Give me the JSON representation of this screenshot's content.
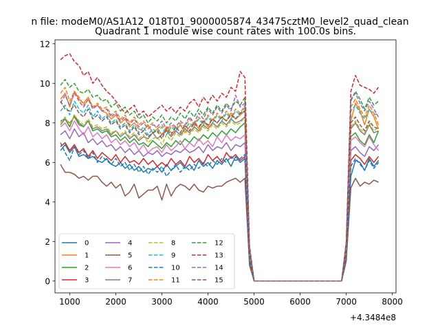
{
  "figure": {
    "suptitle": "n file: modeM0/AS1A12_018T01_9000005874_43475cztM0_level2_quad_clean",
    "background": "#ffffff"
  },
  "chart_data": {
    "type": "line",
    "title": "Quadrant 1 module wise count rates with 100.0s bins.",
    "xlabel": "",
    "ylabel": "",
    "x_offset_label": "+4.3484e8",
    "xlim": [
      680,
      8080
    ],
    "ylim": [
      -0.6,
      12.2
    ],
    "xticks": [
      1000,
      2000,
      3000,
      4000,
      5000,
      6000,
      7000,
      8000
    ],
    "yticks": [
      0,
      2,
      4,
      6,
      8,
      10,
      12
    ],
    "grid": false,
    "legend_position": "lower-left",
    "legend_columns": 4,
    "x": [
      800,
      900,
      1000,
      1100,
      1200,
      1300,
      1400,
      1500,
      1600,
      1700,
      1800,
      1900,
      2000,
      2100,
      2200,
      2300,
      2400,
      2500,
      2600,
      2700,
      2800,
      2900,
      3000,
      3100,
      3200,
      3300,
      3400,
      3500,
      3600,
      3700,
      3800,
      3900,
      4000,
      4100,
      4200,
      4300,
      4400,
      4500,
      4600,
      4700,
      4800,
      4900,
      5000,
      5100,
      5200,
      5300,
      5400,
      5500,
      5600,
      5700,
      5800,
      5900,
      6000,
      6100,
      6200,
      6300,
      6400,
      6500,
      6600,
      6700,
      6800,
      6900,
      7000,
      7100,
      7200,
      7300,
      7400,
      7500,
      7600,
      7700
    ],
    "series": [
      {
        "name": "0",
        "color": "#1f77b4",
        "dash": "solid",
        "values": [
          6.6,
          6.9,
          6.5,
          6.8,
          6.3,
          6.4,
          6.2,
          6.3,
          6.1,
          6.0,
          6.2,
          5.9,
          5.8,
          6.0,
          5.7,
          5.9,
          5.6,
          5.8,
          5.5,
          5.7,
          5.6,
          5.8,
          5.5,
          5.9,
          5.6,
          5.8,
          6.0,
          5.7,
          5.9,
          5.6,
          6.1,
          5.8,
          6.0,
          5.7,
          6.1,
          5.9,
          6.2,
          5.8,
          6.3,
          6.0,
          6.2,
          1.0,
          0.0,
          0,
          0,
          0,
          0,
          0,
          0,
          0,
          0,
          0,
          0,
          0,
          0,
          0,
          0,
          0,
          0,
          0,
          0,
          0,
          1.3,
          5.3,
          6.1,
          6.0,
          5.6,
          6.2,
          5.8,
          6.1
        ]
      },
      {
        "name": "1",
        "color": "#ff7f0e",
        "dash": "solid",
        "values": [
          9.2,
          9.5,
          8.8,
          9.6,
          9.2,
          9.0,
          9.3,
          8.8,
          8.9,
          8.6,
          8.5,
          8.2,
          8.4,
          8.0,
          8.2,
          7.8,
          8.0,
          7.7,
          7.6,
          7.9,
          7.5,
          7.7,
          7.4,
          7.8,
          7.5,
          7.6,
          7.9,
          7.5,
          7.8,
          8.0,
          7.7,
          8.1,
          7.8,
          8.2,
          8.0,
          8.3,
          8.1,
          8.5,
          8.2,
          8.4,
          8.6,
          1.4,
          0.0,
          0,
          0,
          0,
          0,
          0,
          0,
          0,
          0,
          0,
          0,
          0,
          0,
          0,
          0,
          0,
          0,
          0,
          0,
          0,
          1.6,
          8.1,
          9.0,
          8.6,
          7.9,
          8.7,
          8.3,
          7.7
        ]
      },
      {
        "name": "2",
        "color": "#2ca02c",
        "dash": "solid",
        "values": [
          8.1,
          8.2,
          7.8,
          8.4,
          8.0,
          7.8,
          8.1,
          7.6,
          7.7,
          7.5,
          7.6,
          7.3,
          7.4,
          7.1,
          7.3,
          7.0,
          7.2,
          6.9,
          7.0,
          6.8,
          7.1,
          6.9,
          6.7,
          7.0,
          6.8,
          7.1,
          6.9,
          7.2,
          7.0,
          7.3,
          7.1,
          7.4,
          7.2,
          7.5,
          7.3,
          7.6,
          7.4,
          7.7,
          7.5,
          7.8,
          8.0,
          1.3,
          0.0,
          0,
          0,
          0,
          0,
          0,
          0,
          0,
          0,
          0,
          0,
          0,
          0,
          0,
          0,
          0,
          0,
          0,
          0,
          0,
          1.5,
          7.3,
          7.5,
          7.1,
          6.9,
          7.4,
          7.0,
          7.6
        ]
      },
      {
        "name": "3",
        "color": "#d62728",
        "dash": "solid",
        "values": [
          6.8,
          7.0,
          6.6,
          6.9,
          6.5,
          6.7,
          6.3,
          6.6,
          6.2,
          6.5,
          6.3,
          6.1,
          6.4,
          6.0,
          6.3,
          6.0,
          6.1,
          5.9,
          6.2,
          5.9,
          6.1,
          5.8,
          6.0,
          5.8,
          6.2,
          5.9,
          6.1,
          5.8,
          6.3,
          6.0,
          6.2,
          5.9,
          6.4,
          6.1,
          6.3,
          6.0,
          6.5,
          6.2,
          6.4,
          6.1,
          6.3,
          1.1,
          0.0,
          0,
          0,
          0,
          0,
          0,
          0,
          0,
          0,
          0,
          0,
          0,
          0,
          0,
          0,
          0,
          0,
          0,
          0,
          0,
          1.3,
          6.1,
          6.4,
          6.2,
          5.9,
          6.3,
          6.0,
          6.3
        ]
      },
      {
        "name": "4",
        "color": "#9467bd",
        "dash": "solid",
        "values": [
          7.4,
          7.6,
          7.2,
          7.7,
          7.3,
          7.5,
          7.0,
          7.2,
          6.9,
          7.1,
          6.8,
          6.9,
          6.6,
          6.8,
          6.5,
          6.7,
          6.4,
          6.6,
          6.3,
          6.5,
          6.4,
          6.6,
          6.3,
          6.5,
          6.4,
          6.6,
          6.5,
          6.7,
          6.5,
          6.6,
          6.8,
          6.5,
          6.9,
          6.6,
          6.8,
          6.7,
          7.0,
          6.6,
          6.9,
          6.8,
          7.0,
          1.2,
          0.0,
          0,
          0,
          0,
          0,
          0,
          0,
          0,
          0,
          0,
          0,
          0,
          0,
          0,
          0,
          0,
          0,
          0,
          0,
          0,
          1.4,
          6.6,
          6.8,
          6.5,
          6.3,
          6.8,
          6.6,
          6.9
        ]
      },
      {
        "name": "5",
        "color": "#8c564b",
        "dash": "solid",
        "values": [
          5.9,
          5.5,
          5.5,
          5.4,
          5.2,
          5.3,
          5.1,
          5.3,
          5.3,
          5.0,
          4.8,
          5.0,
          4.7,
          4.9,
          4.3,
          4.5,
          4.9,
          4.2,
          4.4,
          4.6,
          4.6,
          4.8,
          4.1,
          4.9,
          4.3,
          4.7,
          4.9,
          4.8,
          4.6,
          4.9,
          4.6,
          4.5,
          4.8,
          4.7,
          4.8,
          4.8,
          5.0,
          5.1,
          5.2,
          5.0,
          5.2,
          0.8,
          0.0,
          0,
          0,
          0,
          0,
          0,
          0,
          0,
          0,
          0,
          0,
          0,
          0,
          0,
          0,
          0,
          0,
          0,
          0,
          0,
          1.0,
          4.7,
          5.2,
          4.8,
          5.0,
          4.9,
          5.1,
          5.0
        ]
      },
      {
        "name": "6",
        "color": "#e377c2",
        "dash": "solid",
        "values": [
          7.8,
          8.0,
          7.6,
          8.1,
          7.7,
          7.4,
          7.8,
          7.3,
          7.5,
          7.2,
          7.4,
          7.0,
          7.2,
          6.9,
          7.1,
          6.8,
          7.0,
          6.6,
          6.9,
          6.5,
          6.7,
          6.8,
          6.5,
          6.9,
          6.6,
          6.8,
          7.1,
          6.7,
          7.0,
          6.8,
          7.2,
          6.9,
          7.1,
          6.8,
          7.3,
          7.0,
          7.4,
          7.1,
          7.3,
          7.2,
          7.4,
          1.3,
          0.0,
          0,
          0,
          0,
          0,
          0,
          0,
          0,
          0,
          0,
          0,
          0,
          0,
          0,
          0,
          0,
          0,
          0,
          0,
          0,
          1.5,
          7.1,
          7.3,
          7.0,
          6.8,
          7.3,
          6.9,
          6.6
        ]
      },
      {
        "name": "7",
        "color": "#7f7f7f",
        "dash": "solid",
        "values": [
          7.9,
          8.2,
          8.0,
          8.3,
          7.9,
          7.8,
          8.1,
          7.7,
          7.8,
          7.6,
          7.7,
          7.4,
          7.6,
          7.3,
          7.5,
          7.2,
          7.4,
          7.1,
          7.3,
          7.2,
          7.5,
          7.2,
          7.4,
          7.6,
          7.3,
          7.6,
          7.4,
          7.7,
          7.5,
          7.8,
          7.6,
          7.9,
          7.7,
          8.0,
          7.8,
          8.1,
          7.9,
          8.2,
          8.0,
          8.1,
          8.3,
          1.4,
          0.0,
          0,
          0,
          0,
          0,
          0,
          0,
          0,
          0,
          0,
          0,
          0,
          0,
          0,
          0,
          0,
          0,
          0,
          0,
          0,
          1.6,
          7.7,
          8.0,
          7.6,
          7.4,
          7.9,
          7.5,
          7.6
        ]
      },
      {
        "name": "8",
        "color": "#bcbd22",
        "dash": "dash",
        "values": [
          8.0,
          8.3,
          7.9,
          8.4,
          8.1,
          7.9,
          8.2,
          7.8,
          7.9,
          7.7,
          7.8,
          7.5,
          7.6,
          7.4,
          7.6,
          7.3,
          7.5,
          7.2,
          7.4,
          7.0,
          7.2,
          7.3,
          6.9,
          7.4,
          7.1,
          7.5,
          7.3,
          7.6,
          7.4,
          7.7,
          7.5,
          7.8,
          7.6,
          7.9,
          7.7,
          8.0,
          7.8,
          8.1,
          7.9,
          8.0,
          8.3,
          1.4,
          0.0,
          0,
          0,
          0,
          0,
          0,
          0,
          0,
          0,
          0,
          0,
          0,
          0,
          0,
          0,
          0,
          0,
          0,
          0,
          0,
          1.6,
          7.8,
          8.1,
          7.7,
          7.5,
          8.0,
          7.6,
          7.8
        ]
      },
      {
        "name": "9",
        "color": "#17becf",
        "dash": "dash",
        "values": [
          8.6,
          8.9,
          8.4,
          9.1,
          8.7,
          8.5,
          8.9,
          8.3,
          8.6,
          8.2,
          8.4,
          8.0,
          8.2,
          7.8,
          8.0,
          7.6,
          7.9,
          7.5,
          7.8,
          7.4,
          7.7,
          7.5,
          7.8,
          7.4,
          7.8,
          7.6,
          7.9,
          7.7,
          8.0,
          7.8,
          8.2,
          7.9,
          8.3,
          8.0,
          8.4,
          8.1,
          8.5,
          8.2,
          8.6,
          8.4,
          8.8,
          1.5,
          0.0,
          0,
          0,
          0,
          0,
          0,
          0,
          0,
          0,
          0,
          0,
          0,
          0,
          0,
          0,
          0,
          0,
          0,
          0,
          0,
          1.7,
          8.6,
          8.9,
          8.5,
          8.2,
          8.7,
          8.4,
          8.5
        ]
      },
      {
        "name": "10",
        "color": "#1f77b4",
        "dash": "dash",
        "values": [
          7.0,
          6.5,
          6.1,
          6.8,
          6.4,
          6.6,
          6.2,
          6.5,
          6.0,
          6.3,
          6.1,
          5.9,
          6.2,
          5.8,
          6.0,
          5.6,
          5.9,
          5.5,
          5.8,
          5.4,
          5.7,
          5.5,
          5.8,
          5.3,
          5.6,
          5.9,
          5.5,
          5.8,
          5.6,
          5.9,
          5.7,
          6.0,
          5.8,
          6.1,
          5.9,
          6.2,
          6.0,
          6.3,
          6.1,
          6.2,
          6.4,
          1.1,
          0.0,
          0,
          0,
          0,
          0,
          0,
          0,
          0,
          0,
          0,
          0,
          0,
          0,
          0,
          0,
          0,
          0,
          0,
          0,
          0,
          1.3,
          5.8,
          6.2,
          5.9,
          5.6,
          6.1,
          5.7,
          6.0
        ]
      },
      {
        "name": "11",
        "color": "#ff7f0e",
        "dash": "dash",
        "values": [
          9.5,
          9.8,
          9.1,
          9.6,
          9.3,
          8.9,
          9.2,
          8.8,
          9.0,
          8.7,
          8.8,
          8.4,
          8.6,
          8.2,
          8.4,
          8.0,
          8.3,
          7.9,
          8.1,
          7.8,
          8.0,
          7.7,
          7.9,
          7.6,
          7.9,
          7.7,
          8.0,
          7.8,
          8.2,
          7.9,
          8.3,
          8.0,
          8.4,
          8.1,
          8.5,
          8.2,
          8.6,
          8.3,
          8.7,
          8.5,
          8.9,
          1.6,
          0.0,
          0,
          0,
          0,
          0,
          0,
          0,
          0,
          0,
          0,
          0,
          0,
          0,
          0,
          0,
          0,
          0,
          0,
          0,
          0,
          1.8,
          8.8,
          9.2,
          8.7,
          8.3,
          8.9,
          8.5,
          7.9
        ]
      },
      {
        "name": "12",
        "color": "#2ca02c",
        "dash": "dash",
        "values": [
          9.9,
          10.2,
          9.8,
          10.0,
          9.6,
          9.5,
          9.7,
          9.3,
          9.4,
          9.1,
          9.2,
          8.8,
          9.0,
          8.6,
          8.8,
          8.4,
          8.6,
          8.2,
          8.4,
          8.0,
          8.3,
          8.1,
          8.4,
          8.0,
          8.3,
          8.1,
          8.5,
          8.2,
          8.6,
          8.3,
          8.7,
          8.4,
          8.8,
          8.5,
          8.9,
          8.6,
          9.0,
          8.7,
          9.1,
          8.9,
          9.3,
          1.7,
          0.0,
          0,
          0,
          0,
          0,
          0,
          0,
          0,
          0,
          0,
          0,
          0,
          0,
          0,
          0,
          0,
          0,
          0,
          0,
          0,
          1.9,
          9.1,
          9.6,
          9.2,
          8.7,
          9.3,
          8.9,
          9.1
        ]
      },
      {
        "name": "13",
        "color": "#d62728",
        "dash": "dash",
        "values": [
          11.2,
          11.4,
          11.5,
          11.1,
          10.9,
          10.4,
          10.6,
          10.0,
          10.3,
          9.9,
          9.6,
          9.4,
          9.1,
          8.8,
          8.5,
          8.7,
          8.9,
          8.4,
          8.6,
          8.3,
          8.5,
          8.7,
          8.9,
          8.6,
          8.8,
          8.5,
          8.8,
          8.6,
          9.0,
          9.2,
          8.8,
          9.3,
          9.0,
          9.4,
          9.1,
          9.5,
          9.3,
          9.8,
          9.6,
          10.6,
          10.3,
          1.8,
          0.0,
          0,
          0,
          0,
          0,
          0,
          0,
          0,
          0,
          0,
          0,
          0,
          0,
          0,
          0,
          0,
          0,
          0,
          0,
          0,
          2.0,
          9.6,
          10.4,
          9.9,
          9.8,
          9.7,
          9.5,
          9.8
        ]
      },
      {
        "name": "14",
        "color": "#9467bd",
        "dash": "dash",
        "values": [
          9.0,
          9.4,
          8.9,
          9.5,
          9.1,
          8.8,
          9.2,
          8.7,
          8.9,
          8.6,
          8.7,
          8.3,
          8.5,
          8.1,
          8.3,
          7.9,
          8.2,
          7.8,
          8.0,
          7.7,
          7.9,
          7.8,
          8.1,
          7.7,
          8.0,
          7.8,
          8.1,
          7.9,
          8.3,
          8.0,
          8.5,
          8.2,
          8.7,
          8.4,
          8.8,
          8.5,
          8.9,
          8.6,
          9.4,
          8.8,
          9.0,
          1.6,
          0.0,
          0,
          0,
          0,
          0,
          0,
          0,
          0,
          0,
          0,
          0,
          0,
          0,
          0,
          0,
          0,
          0,
          0,
          0,
          0,
          1.8,
          9.2,
          9.5,
          9.0,
          8.6,
          9.1,
          8.7,
          8.3
        ]
      },
      {
        "name": "15",
        "color": "#8c564b",
        "dash": "dash",
        "values": [
          9.1,
          8.7,
          8.6,
          8.9,
          8.5,
          8.3,
          8.7,
          8.2,
          8.4,
          8.1,
          8.3,
          7.9,
          8.1,
          7.7,
          7.9,
          7.5,
          7.8,
          7.4,
          7.6,
          7.3,
          7.5,
          7.6,
          7.2,
          7.7,
          7.4,
          7.8,
          7.5,
          7.9,
          7.6,
          8.0,
          7.8,
          8.1,
          7.9,
          8.2,
          8.0,
          8.3,
          8.1,
          8.4,
          8.2,
          8.5,
          8.6,
          1.5,
          0.0,
          0,
          0,
          0,
          0,
          0,
          0,
          0,
          0,
          0,
          0,
          0,
          0,
          0,
          0,
          0,
          0,
          0,
          0,
          0,
          1.7,
          8.0,
          8.3,
          7.9,
          7.6,
          8.1,
          7.8,
          7.7
        ]
      }
    ]
  }
}
